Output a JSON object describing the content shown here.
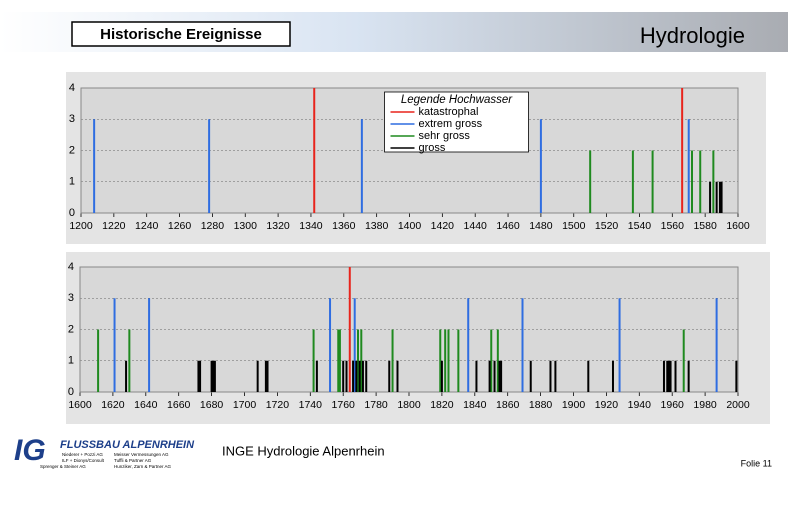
{
  "header": {
    "title": "Historische Ereignisse",
    "subject": "Hydrologie"
  },
  "footer": {
    "logo_initials": "IG",
    "logo_name": "FLUSSBAU ALPENRHEIN",
    "partners": [
      "Niederer + Pozzi AG",
      "Meisser Vermessungen AG",
      "ILF + Dionys/Consult",
      "Tuffli & Partner AG",
      "Sprenger & Steiner AG",
      "Hunziker, Zarn & Partner AG"
    ],
    "project": "INGE Hydrologie Alpenrhein",
    "slide": "Folie 11"
  },
  "chart_data": [
    {
      "type": "bar",
      "legend_title": "Legende Hochwasser",
      "legend": "top-center",
      "grid": true,
      "xlim": [
        1200,
        1600
      ],
      "xticks": [
        1200,
        1220,
        1240,
        1260,
        1280,
        1300,
        1320,
        1340,
        1360,
        1380,
        1400,
        1420,
        1440,
        1460,
        1480,
        1500,
        1520,
        1540,
        1560,
        1580,
        1600
      ],
      "ylim": [
        0,
        4
      ],
      "yticks": [
        0,
        1,
        2,
        3,
        4
      ],
      "series": [
        {
          "name": "katastrophal",
          "color": "#e8241c",
          "x": [
            1342,
            1566
          ],
          "values": [
            4,
            4
          ]
        },
        {
          "name": "extrem gross",
          "color": "#2f6de1",
          "x": [
            1208,
            1278,
            1371,
            1480,
            1570
          ],
          "values": [
            3,
            3,
            3,
            3,
            3
          ]
        },
        {
          "name": "sehr gross",
          "color": "#1f8a1f",
          "x": [
            1510,
            1536,
            1548,
            1572,
            1577,
            1585
          ],
          "values": [
            2,
            2,
            2,
            2,
            2,
            2
          ]
        },
        {
          "name": "gross",
          "color": "#000000",
          "x": [
            1583,
            1587,
            1589,
            1590
          ],
          "values": [
            1,
            1,
            1,
            1
          ]
        }
      ]
    },
    {
      "type": "bar",
      "grid": true,
      "xlim": [
        1600,
        2000
      ],
      "xticks": [
        1600,
        1620,
        1640,
        1660,
        1680,
        1700,
        1720,
        1740,
        1760,
        1780,
        1800,
        1820,
        1840,
        1860,
        1880,
        1900,
        1920,
        1940,
        1960,
        1980,
        2000
      ],
      "ylim": [
        0,
        4
      ],
      "yticks": [
        0,
        1,
        2,
        3,
        4
      ],
      "series": [
        {
          "color": "#e8241c",
          "x": [
            1764
          ],
          "values": [
            4
          ]
        },
        {
          "color": "#2f6de1",
          "x": [
            1621,
            1642,
            1752,
            1767,
            1836,
            1869,
            1928,
            1987
          ],
          "values": [
            3,
            3,
            3,
            3,
            3,
            3,
            3,
            3
          ]
        },
        {
          "color": "#1f8a1f",
          "x": [
            1611,
            1630,
            1742,
            1757,
            1758,
            1769,
            1771,
            1790,
            1819,
            1822,
            1824,
            1830,
            1850,
            1854,
            1967
          ],
          "values": [
            2,
            2,
            2,
            2,
            2,
            2,
            2,
            2,
            2,
            2,
            2,
            2,
            2,
            2,
            2
          ]
        },
        {
          "color": "#000000",
          "x": [
            1628,
            1672,
            1673,
            1680,
            1681,
            1682,
            1708,
            1713,
            1714,
            1744,
            1760,
            1762,
            1766,
            1768,
            1770,
            1772,
            1774,
            1788,
            1793,
            1820,
            1841,
            1849,
            1852,
            1855,
            1856,
            1874,
            1886,
            1889,
            1909,
            1924,
            1955,
            1957,
            1958,
            1959,
            1962,
            1970,
            1999
          ],
          "values": [
            1,
            1,
            1,
            1,
            1,
            1,
            1,
            1,
            1,
            1,
            1,
            1,
            1,
            1,
            1,
            1,
            1,
            1,
            1,
            1,
            1,
            1,
            1,
            1,
            1,
            1,
            1,
            1,
            1,
            1,
            1,
            1,
            1,
            1,
            1,
            1,
            1
          ]
        }
      ]
    }
  ]
}
